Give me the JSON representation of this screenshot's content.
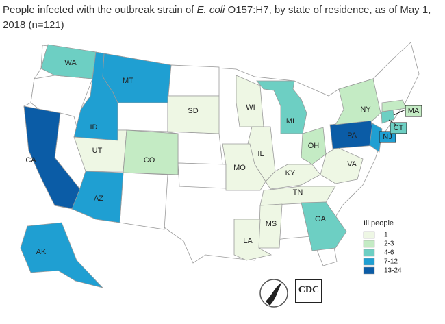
{
  "title_parts": [
    "People infected with the outbreak strain of ",
    "E. coli",
    " O157:H7, by state of residence, as of May 1, 2018 (n=121)"
  ],
  "legend": {
    "title": "Ill people",
    "classes": [
      {
        "label": 1,
        "color": "#eef7e4"
      },
      {
        "label": "2-3",
        "color": "#c4ebc4"
      },
      {
        "label": "4-6",
        "color": "#6dcfc3"
      },
      {
        "label": "7-12",
        "color": "#1f9fd2"
      },
      {
        "label": "13-24",
        "color": "#0b5ca6"
      }
    ]
  },
  "states": [
    {
      "label": "WA",
      "range": "4-6"
    },
    {
      "label": "MT",
      "range": "7-12"
    },
    {
      "label": "ID",
      "range": "7-12"
    },
    {
      "label": "CA",
      "range": "13-24"
    },
    {
      "label": "UT",
      "range": 1
    },
    {
      "label": "CO",
      "range": "2-3"
    },
    {
      "label": "AZ",
      "range": "7-12"
    },
    {
      "label": "SD",
      "range": 1
    },
    {
      "label": "WI",
      "range": 1
    },
    {
      "label": "MI",
      "range": "4-6"
    },
    {
      "label": "IL",
      "range": 1
    },
    {
      "label": "MO",
      "range": 1
    },
    {
      "label": "OH",
      "range": "2-3"
    },
    {
      "label": "KY",
      "range": 1
    },
    {
      "label": "TN",
      "range": 1
    },
    {
      "label": "VA",
      "range": 1
    },
    {
      "label": "MS",
      "range": 1
    },
    {
      "label": "LA",
      "range": 1
    },
    {
      "label": "GA",
      "range": "4-6"
    },
    {
      "label": "PA",
      "range": "13-24"
    },
    {
      "label": "NY",
      "range": "2-3"
    },
    {
      "label": "NJ",
      "range": "7-12"
    },
    {
      "label": "CT",
      "range": "4-6"
    },
    {
      "label": "MA",
      "range": "2-3"
    },
    {
      "label": "AK",
      "range": "7-12"
    }
  ],
  "logo_text": "CDC"
}
